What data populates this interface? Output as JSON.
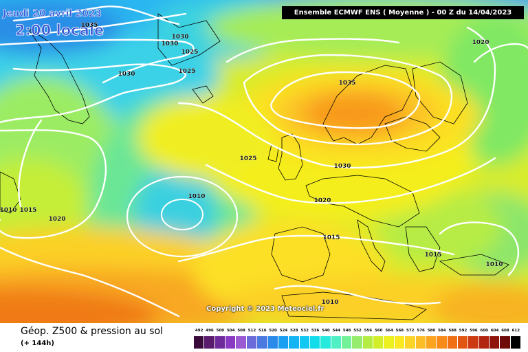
{
  "header": {
    "date": "Jeudi 20 avril 2023",
    "local_time": "2:00 locale",
    "model_run": "Ensemble ECMWF ENS  ( Moyenne )  -  00 Z du 14/04/2023"
  },
  "isobar_labels": [
    "1035",
    "1030",
    "1030",
    "1025",
    "1030",
    "1025",
    "1035",
    "1020",
    "1025",
    "1030",
    "1010",
    "1020",
    "1010",
    "1015",
    "1020",
    "1015",
    "1015",
    "1010",
    "1010"
  ],
  "copyright": "Copyright © 2023 Meteociel.fr",
  "footer": {
    "title": "Géop. Z500 & pression au sol",
    "subtitle": "(+ 144h)"
  },
  "color_scale": {
    "labels": [
      "492",
      "496",
      "500",
      "504",
      "508",
      "512",
      "516",
      "520",
      "524",
      "528",
      "532",
      "536",
      "540",
      "544",
      "548",
      "552",
      "556",
      "560",
      "564",
      "568",
      "572",
      "576",
      "580",
      "584",
      "588",
      "592",
      "596",
      "600",
      "604",
      "608",
      "612"
    ],
    "colors": [
      "#3a0a3a",
      "#5a1a6e",
      "#6e2a9a",
      "#8a3ac2",
      "#9a5ad2",
      "#6a6ad8",
      "#4a7ae0",
      "#2a8aea",
      "#1a9ef2",
      "#12b4f4",
      "#10c8f2",
      "#12dcea",
      "#28eadc",
      "#50f0c4",
      "#74f098",
      "#96ec6c",
      "#b4ec44",
      "#d2ee2a",
      "#ecf01e",
      "#fae820",
      "#fcd428",
      "#fcbe28",
      "#fca420",
      "#f88a18",
      "#f07016",
      "#e25614",
      "#cc3a12",
      "#b02410",
      "#8e140c",
      "#6e0a08",
      "#000000"
    ]
  }
}
